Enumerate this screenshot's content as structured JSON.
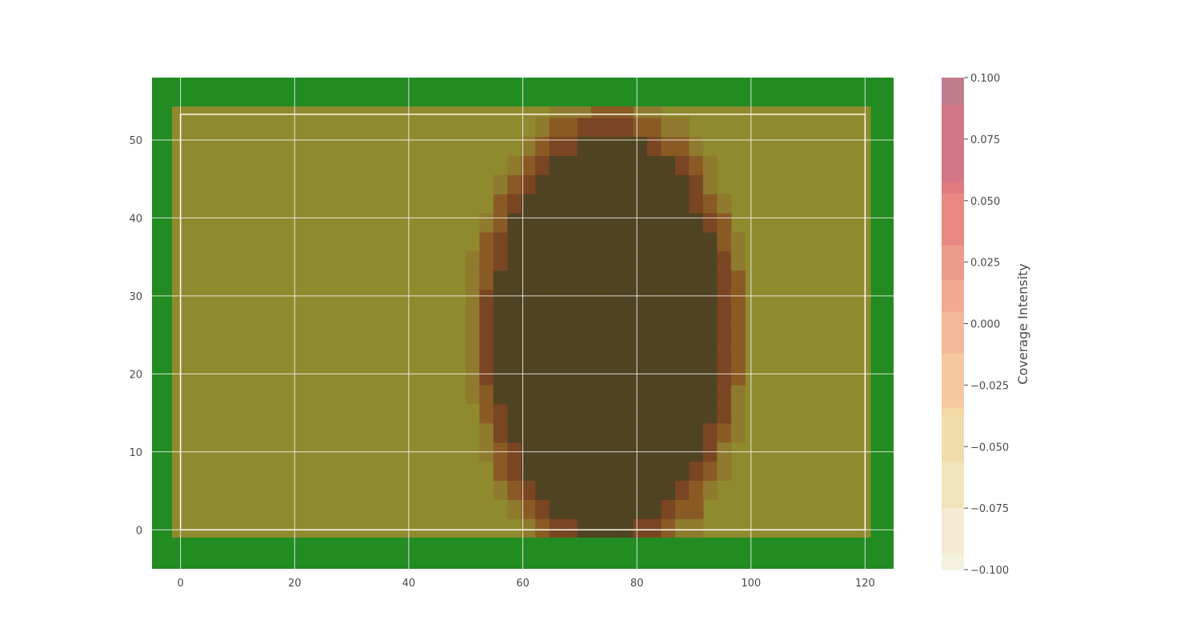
{
  "chart_data": {
    "type": "heatmap",
    "title": "",
    "xlabel": "",
    "ylabel": "",
    "xlim": [
      -5,
      125
    ],
    "ylim": [
      -5,
      58
    ],
    "x_ticks": [
      0,
      20,
      40,
      60,
      80,
      100,
      120
    ],
    "y_ticks": [
      0,
      10,
      20,
      30,
      40,
      50
    ],
    "grid": true,
    "background_color": "#228b22",
    "field": {
      "x_range": [
        -1.5,
        121
      ],
      "y_range": [
        -1,
        54.3
      ],
      "boundary_line": {
        "x": [
          0,
          120
        ],
        "y": [
          0,
          53.3
        ],
        "color": "#f5f0dc"
      }
    },
    "coverage_overlay": {
      "shape": "ellipse",
      "center": [
        75,
        25
      ],
      "radii": [
        23,
        29
      ],
      "base_color": "#908a2f",
      "ring_colors": [
        "#8f7b2e",
        "#8a5a24",
        "#7a4522",
        "#4f4322"
      ]
    },
    "colorbar": {
      "label": "Coverage Intensity",
      "range": [
        -0.1,
        0.1
      ],
      "ticks": [
        "0.100",
        "0.075",
        "0.050",
        "0.025",
        "0.000",
        "−0.025",
        "−0.050",
        "−0.075",
        "−0.100"
      ],
      "bands": [
        {
          "from": -0.1,
          "to": -0.094,
          "color": "#f3f1de"
        },
        {
          "from": -0.094,
          "to": -0.075,
          "color": "#f5ead2"
        },
        {
          "from": -0.075,
          "to": -0.056,
          "color": "#f2e4ba"
        },
        {
          "from": -0.056,
          "to": -0.037,
          "color": "#f0dcab"
        },
        {
          "from": -0.037,
          "to": -0.034,
          "color": "#f3d7a4"
        },
        {
          "from": -0.034,
          "to": -0.012,
          "color": "#f6c8a0"
        },
        {
          "from": -0.012,
          "to": 0.005,
          "color": "#f2b897"
        },
        {
          "from": 0.005,
          "to": 0.018,
          "color": "#f2a992"
        },
        {
          "from": 0.018,
          "to": 0.032,
          "color": "#ec9a8a"
        },
        {
          "from": 0.032,
          "to": 0.053,
          "color": "#e98783"
        },
        {
          "from": 0.053,
          "to": 0.058,
          "color": "#df7a7f"
        },
        {
          "from": 0.058,
          "to": 0.089,
          "color": "#d27785"
        },
        {
          "from": 0.089,
          "to": 0.1,
          "color": "#bf7d8b"
        }
      ]
    }
  }
}
